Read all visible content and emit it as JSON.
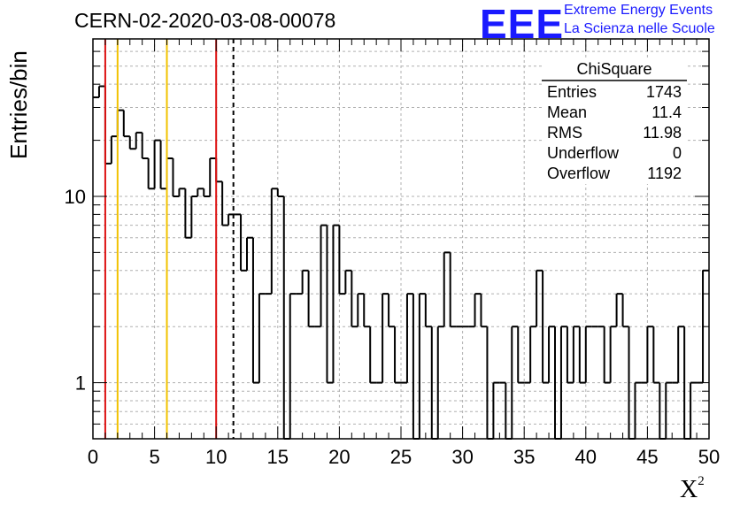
{
  "header": {
    "run_title": "CERN-02-2020-03-08-00078",
    "logo_text": "EEE",
    "logo_line1": "Extreme Energy Events",
    "logo_line2": "La Scienza nelle Scuole"
  },
  "colors": {
    "histogram": "#000000",
    "red_lines": "#dd1111",
    "yellow_lines": "#f2c200",
    "cut_line": "#000000",
    "grid": "#b0b0b0",
    "logo": "#1a1aff"
  },
  "chart_data": {
    "type": "bar",
    "style": "step histogram",
    "title": "",
    "xlabel": "X",
    "xlabel_superscript": "2",
    "ylabel": "Entries/bin",
    "xlim": [
      0,
      50
    ],
    "ylim": [
      0.5,
      70
    ],
    "yscale": "log",
    "grid": true,
    "bin_width": 0.5,
    "x_ticks": [
      "0",
      "5",
      "10",
      "15",
      "20",
      "25",
      "30",
      "35",
      "40",
      "45",
      "50"
    ],
    "y_ticks": [
      "1",
      "10"
    ],
    "values": [
      34,
      39,
      15,
      21,
      29,
      21,
      18,
      22,
      16,
      11,
      20,
      11,
      16,
      10,
      11,
      6,
      10,
      11,
      10,
      16,
      12,
      7,
      8,
      8,
      4,
      6,
      1,
      3,
      3,
      11,
      10,
      0,
      3,
      3,
      4,
      2,
      2,
      7,
      1,
      7,
      3,
      4,
      2,
      3,
      2,
      1,
      1,
      3,
      2,
      1,
      1,
      3,
      0,
      3,
      2,
      0,
      2,
      5,
      2,
      2,
      2,
      2,
      3,
      2,
      0,
      1,
      1,
      0,
      2,
      1,
      1,
      2,
      4,
      1,
      2,
      0,
      2,
      1,
      2,
      1,
      2,
      2,
      2,
      1,
      2,
      3,
      2,
      0,
      1,
      1,
      2,
      1,
      0,
      1,
      1,
      2,
      0,
      1,
      1,
      4
    ],
    "vertical_lines": [
      {
        "x": 1,
        "color": "red"
      },
      {
        "x": 2,
        "color": "yellow"
      },
      {
        "x": 6,
        "color": "yellow"
      },
      {
        "x": 10,
        "color": "red"
      },
      {
        "x": 11.4,
        "color": "black",
        "style": "dashed"
      }
    ],
    "stats_box": {
      "title": "ChiSquare",
      "rows": [
        {
          "label": "Entries",
          "value": "1743"
        },
        {
          "label": "Mean",
          "value": "11.4"
        },
        {
          "label": "RMS",
          "value": "11.98"
        },
        {
          "label": "Underflow",
          "value": "0"
        },
        {
          "label": "Overflow",
          "value": "1192"
        }
      ]
    }
  }
}
